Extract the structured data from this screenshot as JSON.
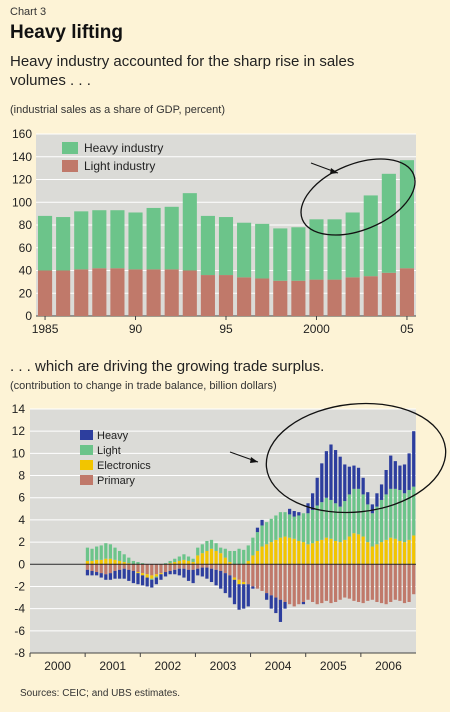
{
  "header": {
    "chart_label": "Chart 3",
    "title": "Heavy lifting",
    "subtitle1": "Heavy industry accounted for the sharp rise in sales volumes . . .",
    "note1": "(industrial sales as a share of GDP, percent)",
    "subtitle2": ". . . which are driving the growing trade surplus.",
    "note2": "(contribution to change in trade balance, billion dollars)",
    "source": "Sources: CEIC; and UBS estimates."
  },
  "colors": {
    "heavy_industry": "#6cc48a",
    "light_industry": "#c0796a",
    "heavy": "#2d3e9e",
    "light": "#6cc48a",
    "electronics": "#f2c500",
    "primary": "#c0796a",
    "plot_bg": "#dbdbd7"
  },
  "chart_data": [
    {
      "type": "bar",
      "stacked": true,
      "x": [
        1985,
        1986,
        1987,
        1988,
        1989,
        1990,
        1991,
        1992,
        1993,
        1994,
        1995,
        1996,
        1997,
        1998,
        1999,
        2000,
        2001,
        2002,
        2003,
        2004,
        2005
      ],
      "x_tick_values": [
        1985,
        1990,
        1995,
        2000,
        2005
      ],
      "x_tick_labels": [
        "1985",
        "90",
        "95",
        "2000",
        "05"
      ],
      "series": [
        {
          "name": "Light industry",
          "values": [
            40,
            40,
            41,
            42,
            42,
            41,
            41,
            41,
            40,
            36,
            36,
            34,
            33,
            31,
            31,
            32,
            32,
            34,
            35,
            38,
            42
          ]
        },
        {
          "name": "Heavy industry",
          "values": [
            48,
            47,
            51,
            51,
            51,
            50,
            54,
            55,
            68,
            52,
            51,
            48,
            48,
            46,
            47,
            53,
            53,
            57,
            71,
            87,
            95
          ]
        }
      ],
      "ylim": [
        0,
        160
      ],
      "y_ticks": [
        0,
        20,
        40,
        60,
        80,
        100,
        120,
        140,
        160
      ],
      "legend": "top-left",
      "annotation": "ellipse-with-arrow"
    },
    {
      "type": "bar",
      "stacked": true,
      "x_start": "2000-01",
      "x_end": "2006-12",
      "x_tick_labels": [
        "2000",
        "2001",
        "2002",
        "2003",
        "2004",
        "2005",
        "2006"
      ],
      "series": [
        {
          "name": "Primary",
          "values": [
            -0.5,
            -0.6,
            -0.7,
            -0.8,
            -0.9,
            -0.8,
            -0.6,
            -0.5,
            -0.4,
            -0.5,
            -0.6,
            -0.7,
            -0.8,
            -0.9,
            -1.0,
            -0.9,
            -0.8,
            -0.7,
            -0.6,
            -0.5,
            -0.4,
            -0.4,
            -0.5,
            -0.5,
            -0.4,
            -0.3,
            -0.3,
            -0.4,
            -0.5,
            -0.6,
            -0.8,
            -1.0,
            -1.2,
            -1.4,
            -1.6,
            -1.8,
            -2.0,
            -2.2,
            -2.4,
            -2.6,
            -2.8,
            -3.0,
            -3.2,
            -3.4,
            -3.6,
            -3.8,
            -3.6,
            -3.4,
            -3.2,
            -3.4,
            -3.6,
            -3.5,
            -3.3,
            -3.5,
            -3.4,
            -3.2,
            -3.0,
            -3.1,
            -3.3,
            -3.4,
            -3.5,
            -3.3,
            -3.2,
            -3.4,
            -3.5,
            -3.6,
            -3.4,
            -3.2,
            -3.3,
            -3.5,
            -3.4,
            -2.7
          ]
        },
        {
          "name": "Electronics",
          "values": [
            0.3,
            0.3,
            0.4,
            0.4,
            0.5,
            0.5,
            0.4,
            0.3,
            0.2,
            0.1,
            0.0,
            -0.1,
            -0.2,
            -0.3,
            -0.3,
            -0.2,
            -0.1,
            0.0,
            0.1,
            0.2,
            0.3,
            0.4,
            0.3,
            0.2,
            0.8,
            1.0,
            1.2,
            1.4,
            1.2,
            1.0,
            0.6,
            0.2,
            -0.2,
            -0.4,
            -0.2,
            0.3,
            0.8,
            1.2,
            1.6,
            1.8,
            2.0,
            2.2,
            2.4,
            2.5,
            2.4,
            2.3,
            2.1,
            2.0,
            1.8,
            1.9,
            2.1,
            2.2,
            2.4,
            2.3,
            2.1,
            2.0,
            2.2,
            2.5,
            2.8,
            2.7,
            2.5,
            2.0,
            1.6,
            1.8,
            2.0,
            2.2,
            2.4,
            2.3,
            2.1,
            2.0,
            2.2,
            2.6
          ]
        },
        {
          "name": "Light",
          "values": [
            1.2,
            1.1,
            1.2,
            1.3,
            1.4,
            1.3,
            1.1,
            0.9,
            0.7,
            0.5,
            0.3,
            0.2,
            0.1,
            0.0,
            -0.1,
            -0.1,
            0.0,
            0.1,
            0.2,
            0.3,
            0.4,
            0.5,
            0.4,
            0.3,
            0.7,
            0.8,
            0.9,
            0.8,
            0.7,
            0.5,
            0.8,
            1.0,
            1.2,
            1.4,
            1.3,
            1.4,
            1.6,
            1.7,
            1.9,
            2.0,
            2.1,
            2.2,
            2.3,
            2.2,
            2.1,
            2.0,
            2.3,
            2.6,
            2.8,
            3.0,
            3.2,
            3.4,
            3.6,
            3.5,
            3.4,
            3.2,
            3.5,
            3.8,
            4.0,
            4.1,
            3.8,
            3.4,
            3.0,
            3.4,
            3.8,
            4.1,
            4.4,
            4.5,
            4.6,
            4.4,
            4.5,
            4.4
          ]
        },
        {
          "name": "Heavy",
          "values": [
            -0.5,
            -0.4,
            -0.3,
            -0.4,
            -0.5,
            -0.6,
            -0.7,
            -0.8,
            -0.9,
            -1.0,
            -1.1,
            -1.0,
            -0.9,
            -0.8,
            -0.7,
            -0.6,
            -0.5,
            -0.4,
            -0.3,
            -0.4,
            -0.6,
            -0.8,
            -1.0,
            -1.2,
            -0.6,
            -0.8,
            -1.0,
            -1.2,
            -1.4,
            -1.6,
            -1.8,
            -2.0,
            -2.2,
            -2.3,
            -2.2,
            -2.0,
            -0.2,
            0.4,
            0.5,
            -0.6,
            -1.2,
            -1.4,
            -2.0,
            -0.6,
            0.5,
            0.5,
            0.3,
            -0.2,
            0.9,
            1.5,
            2.5,
            3.5,
            4.2,
            5.0,
            4.8,
            4.5,
            3.3,
            2.5,
            2.1,
            1.9,
            1.5,
            1.1,
            0.8,
            1.2,
            1.4,
            2.2,
            3.0,
            2.5,
            2.2,
            2.6,
            3.3,
            5.0
          ]
        }
      ],
      "ylim": [
        -8,
        14
      ],
      "y_ticks": [
        -8,
        -6,
        -4,
        -2,
        0,
        2,
        4,
        6,
        8,
        10,
        12,
        14
      ],
      "legend": "top-left",
      "annotation": "ellipse-with-arrow"
    }
  ]
}
